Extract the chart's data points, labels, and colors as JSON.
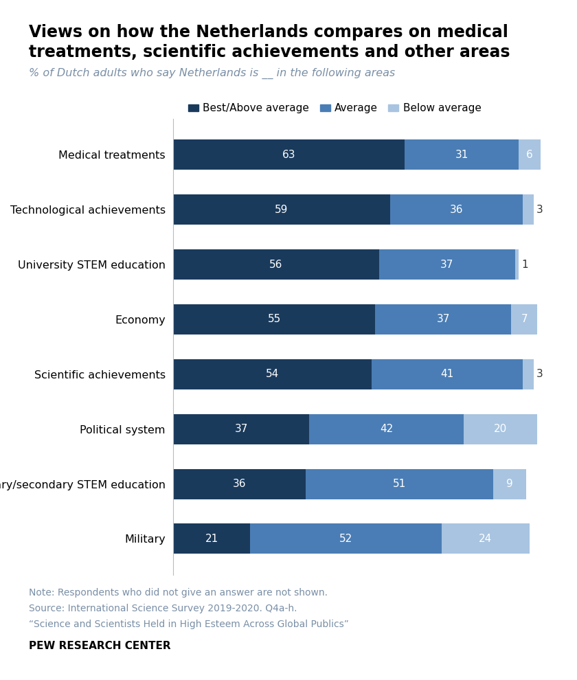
{
  "title_line1": "Views on how the Netherlands compares on medical",
  "title_line2": "treatments, scientific achievements and other areas",
  "subtitle": "% of Dutch adults who say Netherlands is __ in the following areas",
  "categories": [
    "Medical treatments",
    "Technological achievements",
    "University STEM education",
    "Economy",
    "Scientific achievements",
    "Political system",
    "Primary/secondary STEM education",
    "Military"
  ],
  "best_above": [
    63,
    59,
    56,
    55,
    54,
    37,
    36,
    21
  ],
  "average": [
    31,
    36,
    37,
    37,
    41,
    42,
    51,
    52
  ],
  "below": [
    6,
    3,
    1,
    7,
    3,
    20,
    9,
    24
  ],
  "colors": {
    "best_above": "#1a3a5c",
    "average": "#4a7db5",
    "below": "#a8c4e0"
  },
  "legend_labels": [
    "Best/Above average",
    "Average",
    "Below average"
  ],
  "note_lines": [
    "Note: Respondents who did not give an answer are not shown.",
    "Source: International Science Survey 2019-2020. Q4a-h.",
    "“Science and Scientists Held in High Esteem Across Global Publics”"
  ],
  "pew": "PEW RESEARCH CENTER",
  "bar_height": 0.55,
  "background_color": "#ffffff"
}
